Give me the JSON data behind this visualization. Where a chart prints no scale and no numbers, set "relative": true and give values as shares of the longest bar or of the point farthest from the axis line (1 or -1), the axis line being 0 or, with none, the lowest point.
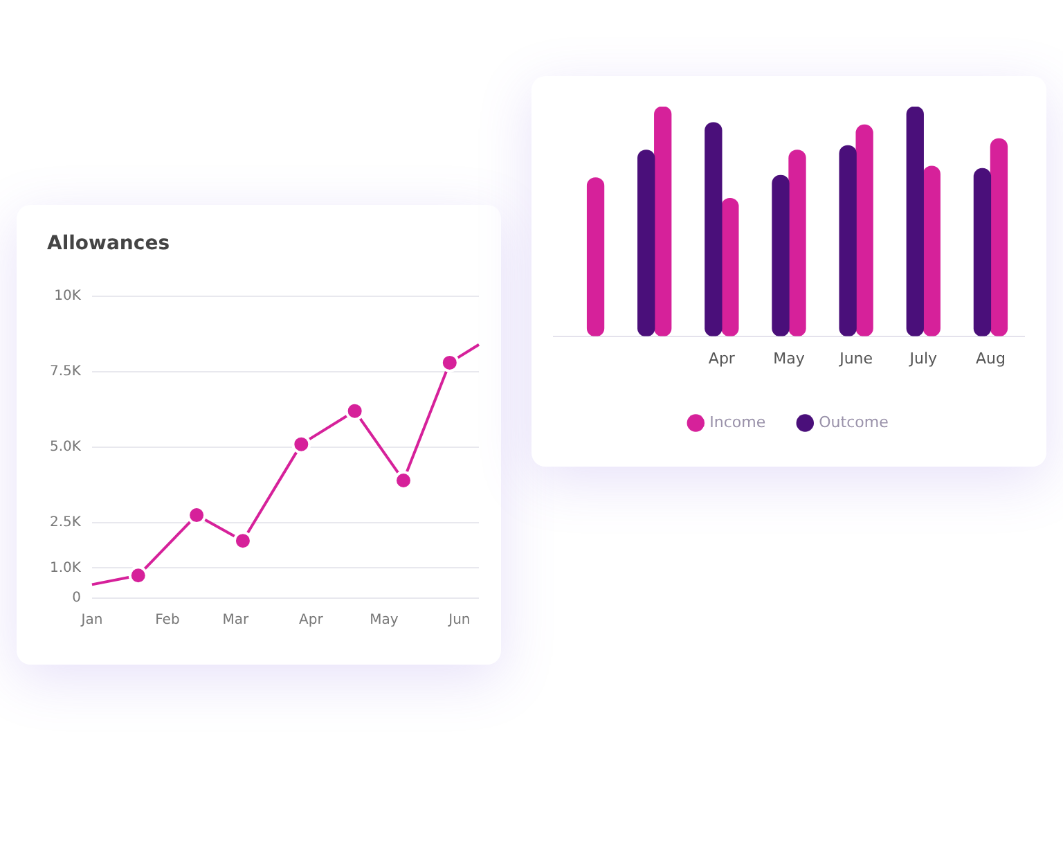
{
  "chart_data": [
    {
      "type": "line",
      "title": "Allowances",
      "x": [
        "--01-01",
        "--01-20",
        "--02-13",
        "--03-04",
        "--03-28",
        "--04-19",
        "--05-09",
        "--05-28",
        "--06-09"
      ],
      "series": [
        {
          "color": "#d6219a",
          "values": [
            450,
            750,
            2750,
            1900,
            5100,
            6200,
            3900,
            7800,
            8400
          ]
        }
      ],
      "xlim": [
        "--01-01",
        "--06-09"
      ],
      "xticks": [
        {
          "value": "--01-01",
          "label": "Jan"
        },
        {
          "value": "--02-01",
          "label": "Feb"
        },
        {
          "value": "--03-01",
          "label": "Mar"
        },
        {
          "value": "--04-01",
          "label": "Apr"
        },
        {
          "value": "--05-01",
          "label": "May"
        },
        {
          "value": "--06-01",
          "label": "Jun"
        }
      ],
      "ylim": [
        0,
        10000
      ],
      "yticks": [
        0,
        {
          "value": 1000,
          "label": "1.0K"
        },
        {
          "value": 2500,
          "label": "2.5K"
        },
        {
          "value": 5000,
          "label": "5.0K"
        },
        {
          "value": 7500,
          "label": "7.5K"
        },
        {
          "value": 10000,
          "label": "10K"
        }
      ],
      "grid": "y",
      "marker": "circle"
    },
    {
      "type": "bar",
      "relative": true,
      "categories": [
        null,
        null,
        "Apr",
        "May",
        "June",
        "July",
        "Aug"
      ],
      "series": [
        {
          "name": "Outcome",
          "color": "#4a0f7a",
          "values": [
            null,
            0.81,
            0.93,
            0.7,
            0.83,
            1.0,
            0.73
          ]
        },
        {
          "name": "Income",
          "color": "#d6219a",
          "values": [
            0.69,
            1.0,
            0.6,
            0.81,
            0.92,
            0.74,
            0.86
          ]
        }
      ],
      "legend": "bottom"
    }
  ]
}
